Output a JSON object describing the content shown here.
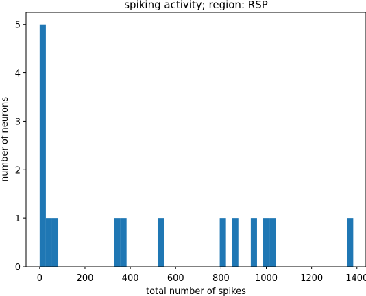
{
  "chart_data": {
    "type": "bar",
    "title": "spiking activity; region: RSP",
    "xlabel": "total number of spikes",
    "ylabel": "number of neurons",
    "xlim": [
      -60,
      1440
    ],
    "ylim": [
      0,
      5.25
    ],
    "xticks": [
      0,
      200,
      400,
      600,
      800,
      1000,
      1200,
      1400
    ],
    "xtick_labels": [
      "0",
      "200",
      "400",
      "600",
      "800",
      "1000",
      "1200",
      "1400"
    ],
    "yticks": [
      0,
      1,
      2,
      3,
      4,
      5
    ],
    "ytick_labels": [
      "0",
      "1",
      "2",
      "3",
      "4",
      "5"
    ],
    "grid": false,
    "color": "#1f77b4",
    "bin_width": 27.4,
    "bins": [
      {
        "x0": 0,
        "value": 5
      },
      {
        "x0": 27.4,
        "value": 1
      },
      {
        "x0": 54.8,
        "value": 1
      },
      {
        "x0": 328.8,
        "value": 1
      },
      {
        "x0": 356.2,
        "value": 1
      },
      {
        "x0": 520.6,
        "value": 1
      },
      {
        "x0": 794.6,
        "value": 1
      },
      {
        "x0": 849.4,
        "value": 1
      },
      {
        "x0": 931.6,
        "value": 1
      },
      {
        "x0": 986.4,
        "value": 1
      },
      {
        "x0": 1013.8,
        "value": 1
      },
      {
        "x0": 1356.2,
        "value": 1
      }
    ]
  }
}
